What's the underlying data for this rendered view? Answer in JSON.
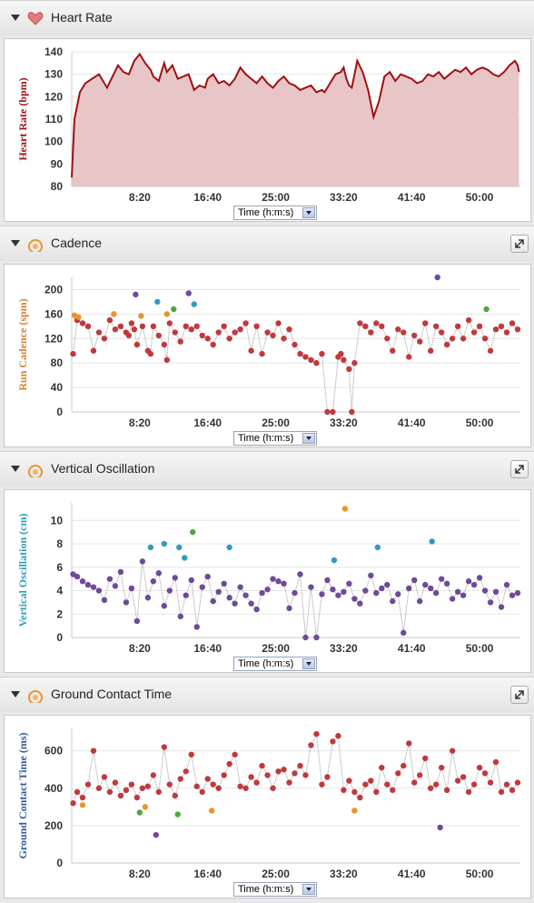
{
  "panels": [
    {
      "title": "Heart Rate",
      "icon": "heart-icon",
      "x_select": "Time (h:m:s)"
    },
    {
      "title": "Cadence",
      "icon": "running-icon",
      "x_select": "Time (h:m:s)"
    },
    {
      "title": "Vertical Oscillation",
      "icon": "running-icon",
      "x_select": "Time (h:m:s)"
    },
    {
      "title": "Ground Contact Time",
      "icon": "running-icon",
      "x_select": "Time (h:m:s)"
    }
  ],
  "colors": {
    "red": "#c0393b",
    "orange": "#e8952c",
    "green": "#4ea840",
    "blue": "#2f9bc0",
    "purple": "#6e4a9a",
    "hr_line": "#9e1012",
    "hr_fill": "#e8c6c8"
  },
  "chart_data": [
    {
      "type": "area",
      "ylabel": "Heart Rate (bpm)",
      "ylabel_color": "#9e1012",
      "xlabel": "Time (h:m:s)",
      "xticks": [
        "8:20",
        "16:40",
        "25:00",
        "33:20",
        "41:40",
        "50:00"
      ],
      "xtick_values": [
        500,
        1000,
        1500,
        2000,
        2500,
        3000
      ],
      "xlim": [
        0,
        3300
      ],
      "yticks": [
        80,
        90,
        100,
        110,
        120,
        130,
        140
      ],
      "ylim": [
        80,
        140
      ],
      "grid": true,
      "series": [
        {
          "x": [
            0,
            20,
            40,
            60,
            100,
            150,
            200,
            260,
            300,
            340,
            380,
            420,
            460,
            500,
            540,
            580,
            600,
            640,
            680,
            700,
            740,
            780,
            820,
            860,
            900,
            940,
            980,
            1000,
            1040,
            1080,
            1120,
            1160,
            1200,
            1240,
            1280,
            1320,
            1360,
            1400,
            1440,
            1480,
            1520,
            1560,
            1600,
            1640,
            1680,
            1720,
            1760,
            1800,
            1840,
            1860,
            1900,
            1940,
            1980,
            2000,
            2020,
            2040,
            2060,
            2080,
            2100,
            2140,
            2180,
            2220,
            2260,
            2300,
            2340,
            2380,
            2420,
            2460,
            2500,
            2540,
            2580,
            2620,
            2660,
            2700,
            2740,
            2780,
            2820,
            2860,
            2900,
            2940,
            2980,
            3020,
            3060,
            3100,
            3140,
            3180,
            3220,
            3260,
            3280,
            3290
          ],
          "y": [
            84,
            110,
            116,
            122,
            126,
            128,
            130,
            124,
            129,
            134,
            131,
            130,
            136,
            139,
            135,
            132,
            129,
            127,
            135,
            131,
            134,
            128,
            129,
            130,
            123,
            125,
            124,
            128,
            130,
            126,
            127,
            125,
            128,
            133,
            130,
            128,
            126,
            129,
            126,
            124,
            127,
            129,
            126,
            125,
            123,
            124,
            125,
            122,
            123,
            122,
            126,
            130,
            131,
            133,
            128,
            125,
            124,
            130,
            136,
            131,
            123,
            111,
            118,
            129,
            131,
            127,
            130,
            129,
            128,
            126,
            127,
            130,
            129,
            131,
            128,
            130,
            132,
            131,
            133,
            130,
            132,
            133,
            132,
            130,
            129,
            131,
            134,
            136,
            134,
            131
          ]
        }
      ]
    },
    {
      "type": "scatter",
      "ylabel": "Run Cadence (spm)",
      "ylabel_color": "#d4812a",
      "xlabel": "Time (h:m:s)",
      "xticks": [
        "8:20",
        "16:40",
        "25:00",
        "33:20",
        "41:40",
        "50:00"
      ],
      "xtick_values": [
        500,
        1000,
        1500,
        2000,
        2500,
        3000
      ],
      "xlim": [
        0,
        3300
      ],
      "yticks": [
        0,
        40,
        80,
        120,
        160,
        200
      ],
      "ylim": [
        0,
        220
      ],
      "grid": true,
      "series": [
        {
          "x": [
            10,
            40,
            80,
            120,
            160,
            200,
            240,
            280,
            320,
            360,
            400,
            420,
            440,
            460,
            480,
            520,
            560,
            580,
            600,
            640,
            680,
            700,
            720,
            760,
            800,
            840,
            880,
            920,
            960,
            1000,
            1040,
            1080,
            1120,
            1160,
            1200,
            1240,
            1280,
            1320,
            1360,
            1400,
            1440,
            1480,
            1520,
            1560,
            1600,
            1640,
            1680,
            1720,
            1760,
            1800,
            1840,
            1880,
            1920,
            1960,
            1980,
            2000,
            2040,
            2060,
            2080,
            2120,
            2160,
            2200,
            2240,
            2280,
            2320,
            2360,
            2400,
            2440,
            2480,
            2520,
            2560,
            2600,
            2640,
            2680,
            2720,
            2760,
            2800,
            2840,
            2880,
            2920,
            2960,
            3000,
            3040,
            3080,
            3120,
            3160,
            3200,
            3240,
            3280
          ],
          "y": [
            95,
            150,
            145,
            140,
            100,
            130,
            120,
            150,
            135,
            140,
            130,
            125,
            145,
            135,
            110,
            140,
            100,
            95,
            140,
            125,
            110,
            85,
            145,
            130,
            115,
            140,
            135,
            140,
            125,
            120,
            110,
            130,
            140,
            120,
            130,
            135,
            145,
            100,
            140,
            95,
            130,
            125,
            145,
            120,
            135,
            110,
            95,
            90,
            85,
            80,
            95,
            0,
            0,
            90,
            95,
            85,
            70,
            0,
            80,
            145,
            140,
            130,
            145,
            140,
            120,
            100,
            135,
            130,
            90,
            125,
            115,
            145,
            100,
            140,
            130,
            110,
            120,
            140,
            120,
            150,
            130,
            140,
            120,
            100,
            135,
            140,
            130,
            145,
            135
          ]
        },
        {
          "x": [
            20,
            50,
            310,
            510,
            700
          ],
          "y": [
            158,
            155,
            160,
            157,
            160
          ],
          "color": "#e8952c"
        },
        {
          "x": [
            750,
            3050
          ],
          "y": [
            168,
            168
          ],
          "color": "#4ea840"
        },
        {
          "x": [
            630,
            900
          ],
          "y": [
            180,
            176
          ],
          "color": "#2f9bc0"
        },
        {
          "x": [
            470,
            860,
            2690
          ],
          "y": [
            192,
            194,
            220
          ],
          "color": "#6e4a9a"
        }
      ]
    },
    {
      "type": "scatter",
      "ylabel": "Vertical Oscillation (cm)",
      "ylabel_color": "#2b9cb6",
      "xlabel": "Time (h:m:s)",
      "xticks": [
        "8:20",
        "16:40",
        "25:00",
        "33:20",
        "41:40",
        "50:00"
      ],
      "xtick_values": [
        500,
        1000,
        1500,
        2000,
        2500,
        3000
      ],
      "xlim": [
        0,
        3300
      ],
      "yticks": [
        0,
        2,
        4,
        6,
        8,
        10
      ],
      "ylim": [
        0,
        11.5
      ],
      "grid": true,
      "series": [
        {
          "x": [
            10,
            40,
            80,
            120,
            160,
            200,
            240,
            280,
            320,
            360,
            400,
            440,
            480,
            520,
            560,
            600,
            640,
            680,
            720,
            760,
            800,
            840,
            880,
            920,
            960,
            1000,
            1040,
            1080,
            1120,
            1160,
            1200,
            1240,
            1280,
            1320,
            1360,
            1400,
            1440,
            1480,
            1520,
            1560,
            1600,
            1640,
            1680,
            1720,
            1760,
            1800,
            1840,
            1880,
            1920,
            1960,
            2000,
            2040,
            2080,
            2120,
            2160,
            2200,
            2240,
            2280,
            2320,
            2360,
            2400,
            2440,
            2480,
            2520,
            2560,
            2600,
            2640,
            2680,
            2720,
            2760,
            2800,
            2840,
            2880,
            2920,
            2960,
            3000,
            3040,
            3080,
            3120,
            3160,
            3200,
            3240,
            3280
          ],
          "y": [
            5.4,
            5.2,
            4.8,
            4.5,
            4.3,
            4.0,
            3.2,
            5.0,
            4.4,
            5.6,
            3.0,
            4.2,
            1.4,
            6.5,
            3.4,
            4.8,
            5.5,
            2.7,
            4.0,
            5.1,
            1.8,
            3.6,
            4.9,
            0.9,
            4.3,
            5.2,
            3.1,
            3.9,
            4.6,
            3.4,
            2.9,
            4.3,
            3.6,
            2.9,
            2.4,
            3.8,
            4.1,
            5.0,
            4.8,
            4.6,
            2.5,
            3.8,
            5.4,
            0.0,
            4.3,
            0.0,
            3.7,
            4.9,
            4.1,
            3.6,
            3.9,
            4.6,
            3.3,
            2.9,
            4.0,
            5.3,
            3.8,
            4.2,
            4.5,
            3.1,
            3.7,
            0.4,
            4.2,
            4.9,
            3.1,
            4.5,
            4.2,
            3.8,
            5.0,
            4.6,
            3.3,
            3.9,
            3.6,
            4.8,
            4.5,
            5.1,
            4.0,
            3.0,
            3.9,
            2.6,
            4.5,
            3.6,
            3.8
          ]
        },
        {
          "x": [
            580,
            680,
            830,
            1160,
            1930,
            2250
          ],
          "y": [
            7.7,
            8.0,
            6.8,
            7.7,
            6.6,
            7.7
          ],
          "color": "#2f9bc0"
        },
        {
          "x": [
            790,
            2650
          ],
          "y": [
            7.7,
            8.2
          ],
          "color": "#2f9bc0"
        },
        {
          "x": [
            890
          ],
          "y": [
            9.0
          ],
          "color": "#4ea840"
        },
        {
          "x": [
            2010
          ],
          "y": [
            11.0
          ],
          "color": "#e8952c"
        }
      ]
    },
    {
      "type": "scatter",
      "ylabel": "Ground Contact Time (ms)",
      "ylabel_color": "#2f5aa0",
      "xlabel": "Time (h:m:s)",
      "xticks": [
        "8:20",
        "16:40",
        "25:00",
        "33:20",
        "41:40",
        "50:00"
      ],
      "xtick_values": [
        500,
        1000,
        1500,
        2000,
        2500,
        3000
      ],
      "xlim": [
        0,
        3300
      ],
      "yticks": [
        0,
        200,
        400,
        600
      ],
      "ylim": [
        0,
        720
      ],
      "grid": true,
      "series": [
        {
          "x": [
            10,
            40,
            80,
            120,
            160,
            200,
            240,
            280,
            320,
            360,
            400,
            440,
            480,
            520,
            560,
            600,
            640,
            680,
            720,
            760,
            800,
            840,
            880,
            920,
            960,
            1000,
            1040,
            1080,
            1120,
            1160,
            1200,
            1240,
            1280,
            1320,
            1360,
            1400,
            1440,
            1480,
            1520,
            1560,
            1600,
            1640,
            1680,
            1720,
            1760,
            1800,
            1840,
            1880,
            1920,
            1960,
            2000,
            2040,
            2080,
            2120,
            2160,
            2200,
            2240,
            2280,
            2320,
            2360,
            2400,
            2440,
            2480,
            2520,
            2560,
            2600,
            2640,
            2680,
            2720,
            2760,
            2800,
            2840,
            2880,
            2920,
            2960,
            3000,
            3040,
            3080,
            3120,
            3160,
            3200,
            3240,
            3280
          ],
          "y": [
            320,
            380,
            350,
            420,
            600,
            400,
            460,
            380,
            430,
            360,
            390,
            420,
            350,
            400,
            410,
            470,
            380,
            620,
            420,
            360,
            450,
            490,
            580,
            410,
            380,
            450,
            420,
            400,
            470,
            530,
            580,
            410,
            400,
            460,
            430,
            520,
            470,
            400,
            490,
            500,
            430,
            480,
            520,
            470,
            630,
            690,
            420,
            460,
            650,
            680,
            390,
            440,
            380,
            350,
            420,
            440,
            380,
            510,
            420,
            390,
            480,
            520,
            640,
            430,
            470,
            560,
            400,
            420,
            510,
            390,
            600,
            440,
            460,
            380,
            420,
            510,
            480,
            430,
            540,
            380,
            420,
            390,
            430
          ]
        },
        {
          "x": [
            80,
            540,
            1030,
            2080
          ],
          "y": [
            310,
            300,
            280,
            280
          ],
          "color": "#e8952c"
        },
        {
          "x": [
            500,
            780
          ],
          "y": [
            270,
            260
          ],
          "color": "#4ea840"
        },
        {
          "x": [
            620,
            2710
          ],
          "y": [
            150,
            190
          ],
          "color": "#6e4a9a"
        }
      ]
    }
  ]
}
